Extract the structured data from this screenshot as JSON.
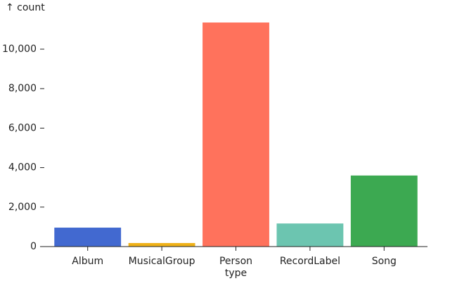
{
  "chart_data": {
    "type": "bar",
    "y_label": "↑ count",
    "x_label": "type",
    "categories": [
      "Album",
      "MusicalGroup",
      "Person",
      "RecordLabel",
      "Song"
    ],
    "values": [
      960,
      180,
      11350,
      1170,
      3600
    ],
    "colors": [
      "#4269d0",
      "#efb118",
      "#ff725c",
      "#6cc5b0",
      "#3ca951"
    ],
    "ylim": [
      0,
      11800
    ],
    "yticks": [
      0,
      {
        "value": 2000,
        "label": "2,000"
      },
      {
        "value": 4000,
        "label": "4,000"
      },
      {
        "value": 6000,
        "label": "6,000"
      },
      {
        "value": 8000,
        "label": "8,000"
      },
      {
        "value": 10000,
        "label": "10,000"
      }
    ],
    "grid": false
  }
}
